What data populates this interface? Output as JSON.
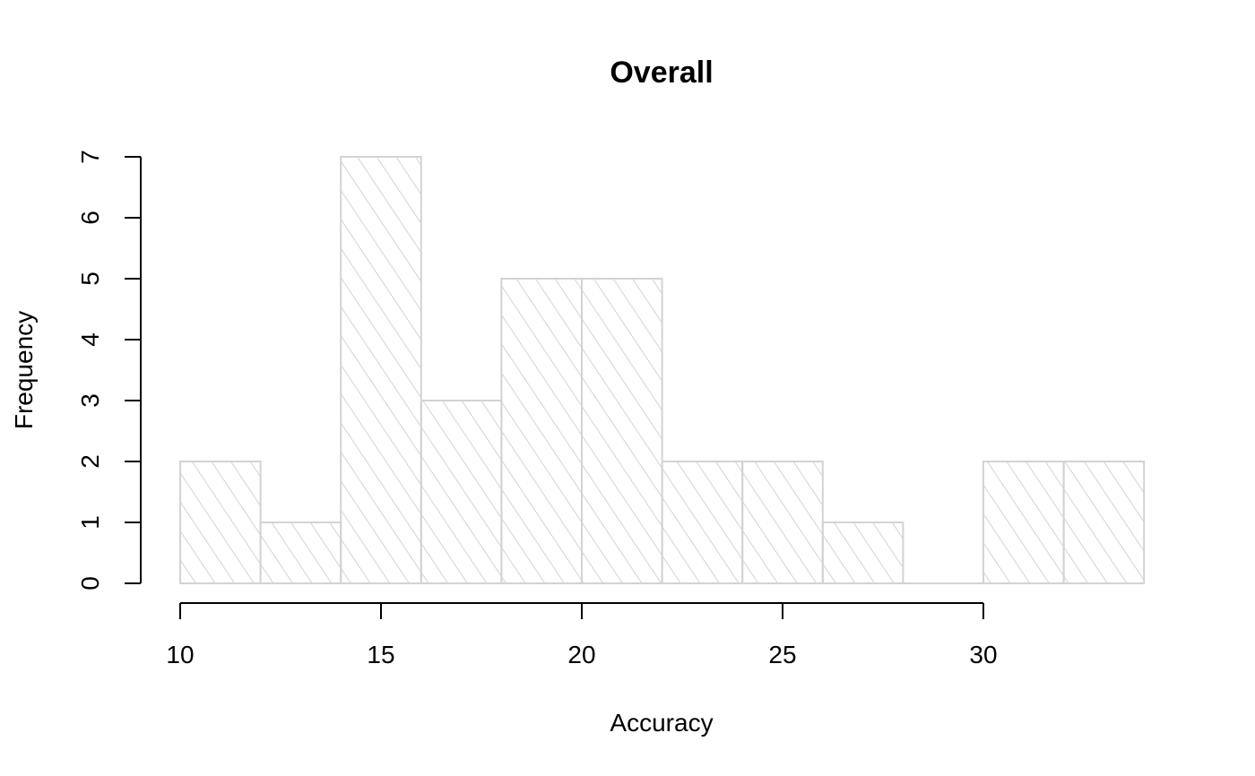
{
  "chart_data": {
    "type": "bar",
    "subtype": "histogram",
    "title": "Overall",
    "xlabel": "Accuracy",
    "ylabel": "Frequency",
    "bins": [
      {
        "start": 10,
        "end": 12,
        "count": 2
      },
      {
        "start": 12,
        "end": 14,
        "count": 1
      },
      {
        "start": 14,
        "end": 16,
        "count": 7
      },
      {
        "start": 16,
        "end": 18,
        "count": 3
      },
      {
        "start": 18,
        "end": 20,
        "count": 5
      },
      {
        "start": 20,
        "end": 22,
        "count": 5
      },
      {
        "start": 22,
        "end": 24,
        "count": 2
      },
      {
        "start": 24,
        "end": 26,
        "count": 2
      },
      {
        "start": 26,
        "end": 28,
        "count": 1
      },
      {
        "start": 28,
        "end": 30,
        "count": 0
      },
      {
        "start": 30,
        "end": 32,
        "count": 2
      },
      {
        "start": 32,
        "end": 34,
        "count": 2
      }
    ],
    "xlim": [
      10,
      34
    ],
    "ylim": [
      0,
      7
    ],
    "x_ticks": [
      "10",
      "15",
      "20",
      "25",
      "30"
    ],
    "y_ticks": [
      "0",
      "1",
      "2",
      "3",
      "4",
      "5",
      "6",
      "7"
    ],
    "grid": false,
    "legend": "none",
    "bar_fill": "hatched diagonal lines",
    "bar_color": "#d3d3d3"
  }
}
